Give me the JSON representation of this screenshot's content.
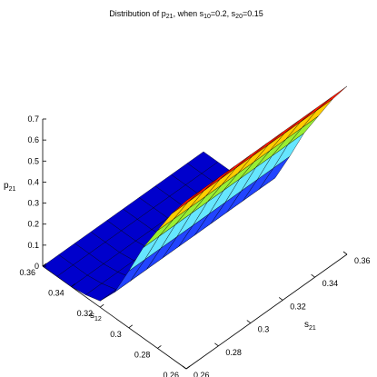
{
  "chart_data": {
    "type": "surface",
    "title": {
      "prefix": "Distribution of p",
      "prefix_sub": "21",
      "mid": ", when s",
      "mid_sub": "10",
      "mid2": "=0.2, s",
      "mid2_sub": "20",
      "suffix": "=0.15"
    },
    "xlabel": {
      "base": "s",
      "sub": "21"
    },
    "ylabel": {
      "base": "s",
      "sub": "12"
    },
    "zlabel": {
      "base": "p",
      "sub": "21"
    },
    "x_ticks": [
      "0.26",
      "0.28",
      "0.3",
      "0.32",
      "0.34",
      "0.36"
    ],
    "y_ticks": [
      "0.26",
      "0.28",
      "0.3",
      "0.32",
      "0.34",
      "0.36"
    ],
    "z_ticks": [
      "0",
      "0.1",
      "0.2",
      "0.3",
      "0.4",
      "0.5",
      "0.6",
      "0.7"
    ],
    "x": [
      0.26,
      0.27,
      0.28,
      0.29,
      0.3,
      0.31,
      0.32,
      0.33,
      0.34,
      0.35,
      0.36
    ],
    "y": [
      0.26,
      0.27,
      0.28,
      0.29,
      0.3,
      0.31,
      0.32,
      0.33,
      0.34,
      0.35,
      0.36
    ],
    "z_by_y": [
      0.8,
      0.69,
      0.56,
      0.43,
      0.27,
      0.12,
      0.03,
      0.01,
      0.0,
      0.0,
      0.0
    ],
    "xlim": [
      0.26,
      0.36
    ],
    "ylim": [
      0.26,
      0.36
    ],
    "zlim": [
      0,
      0.8
    ],
    "colormap": [
      "#0000cc",
      "#2244ff",
      "#66e6ff",
      "#99ee33",
      "#ffcc00",
      "#ff1a00"
    ],
    "grid": false
  }
}
